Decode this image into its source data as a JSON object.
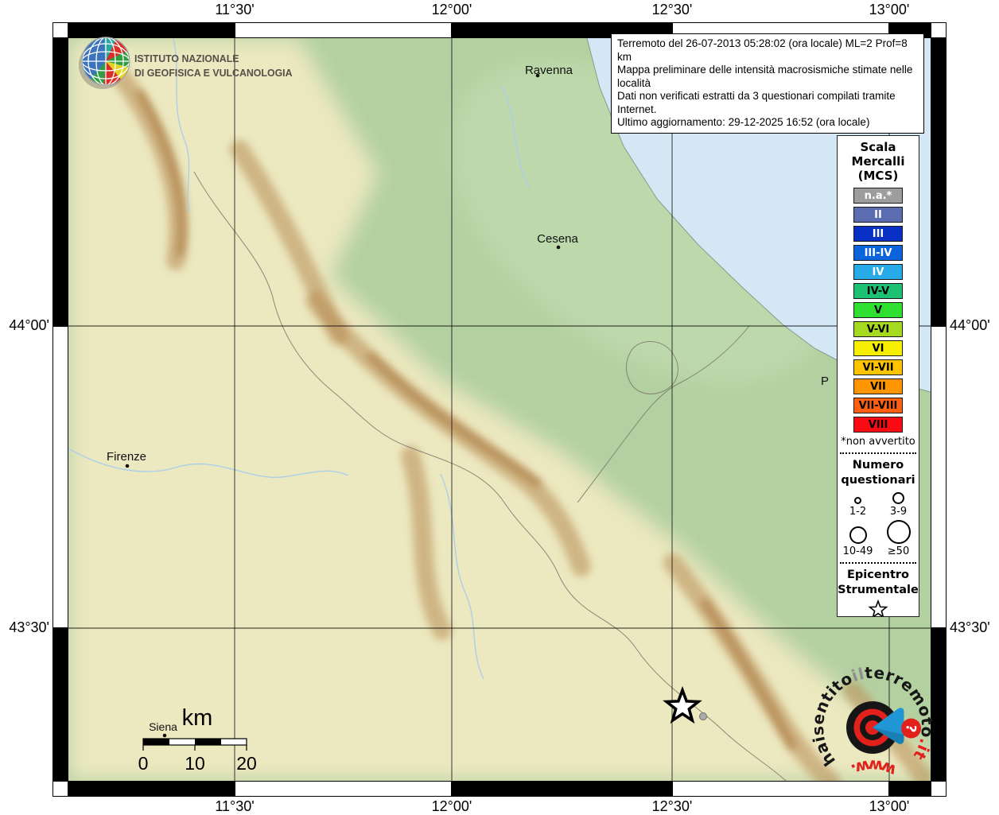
{
  "axis": {
    "top": [
      "11°30'",
      "12°00'",
      "12°30'",
      "13°00'"
    ],
    "bottom": [
      "11°30'",
      "12°00'",
      "12°30'",
      "13°00'"
    ],
    "left": [
      "44°00'",
      "43°30'"
    ],
    "right": [
      "44°00'",
      "43°30'"
    ]
  },
  "info_box": {
    "lines": [
      "Terremoto del 26-07-2013 05:28:02 (ora locale) ML=2 Prof=8 km",
      "Mappa preliminare delle intensità macrosismiche stimate nelle località",
      "Dati non verificati estratti da 3 questionari compilati tramite Internet.",
      "Ultimo aggiornamento: 29-12-2025 16:52 (ora locale)"
    ]
  },
  "ingv": {
    "name_line1": "ISTITUTO NAZIONALE",
    "name_line2": "DI GEOFISICA E VULCANOLOGIA"
  },
  "legend": {
    "title_lines": [
      "Scala",
      "Mercalli",
      "(MCS)"
    ],
    "scale_items": [
      {
        "label": "n.a.*",
        "color": "#9d9d9d",
        "text_color": "#ffffff"
      },
      {
        "label": "II",
        "color": "#5c6cb1",
        "text_color": "#ffffff"
      },
      {
        "label": "III",
        "color": "#0a2fc4",
        "text_color": "#ffffff"
      },
      {
        "label": "III-IV",
        "color": "#0b64dc",
        "text_color": "#ffffff"
      },
      {
        "label": "IV",
        "color": "#28a9e8",
        "text_color": "#ffffff"
      },
      {
        "label": "IV-V",
        "color": "#1dc173",
        "text_color": "#000000"
      },
      {
        "label": "V",
        "color": "#30e030",
        "text_color": "#000000"
      },
      {
        "label": "V-VI",
        "color": "#a6da20",
        "text_color": "#000000"
      },
      {
        "label": "VI",
        "color": "#f7ef00",
        "text_color": "#000000"
      },
      {
        "label": "VI-VII",
        "color": "#ffc400",
        "text_color": "#000000"
      },
      {
        "label": "VII",
        "color": "#ff9500",
        "text_color": "#000000"
      },
      {
        "label": "VII-VIII",
        "color": "#ff5f0f",
        "text_color": "#000000"
      },
      {
        "label": "VIII",
        "color": "#fa0a12",
        "text_color": "#000000"
      }
    ],
    "footnote": "*non avvertito",
    "questionnaires": {
      "title_lines": [
        "Numero",
        "questionari"
      ],
      "classes": [
        {
          "label": "1-2"
        },
        {
          "label": "3-9"
        },
        {
          "label": "10-49"
        },
        {
          "label": "≥50"
        }
      ]
    },
    "epicenter": {
      "title_lines": [
        "Epicentro",
        "Strumentale"
      ]
    }
  },
  "map": {
    "cities": {
      "ravenna": "Ravenna",
      "cesena": "Cesena",
      "firenze": "Firenze",
      "siena": "Siena",
      "pesaro_partial": "P"
    },
    "scale_bar": {
      "unit": "km",
      "tick0": "0",
      "tick1": "10",
      "tick2": "20"
    }
  },
  "watermark": {
    "arc_part1": "haisentito",
    "arc_part2": "il",
    "arc_part3": "terremoto",
    "arc_part4": ".it",
    "www": "www.",
    "question_mark": "?"
  },
  "colors": {
    "sea": "#d3e7f4",
    "land": "#b3d0a1",
    "hills": "#ece8c0",
    "ridge": "#b68a52"
  }
}
